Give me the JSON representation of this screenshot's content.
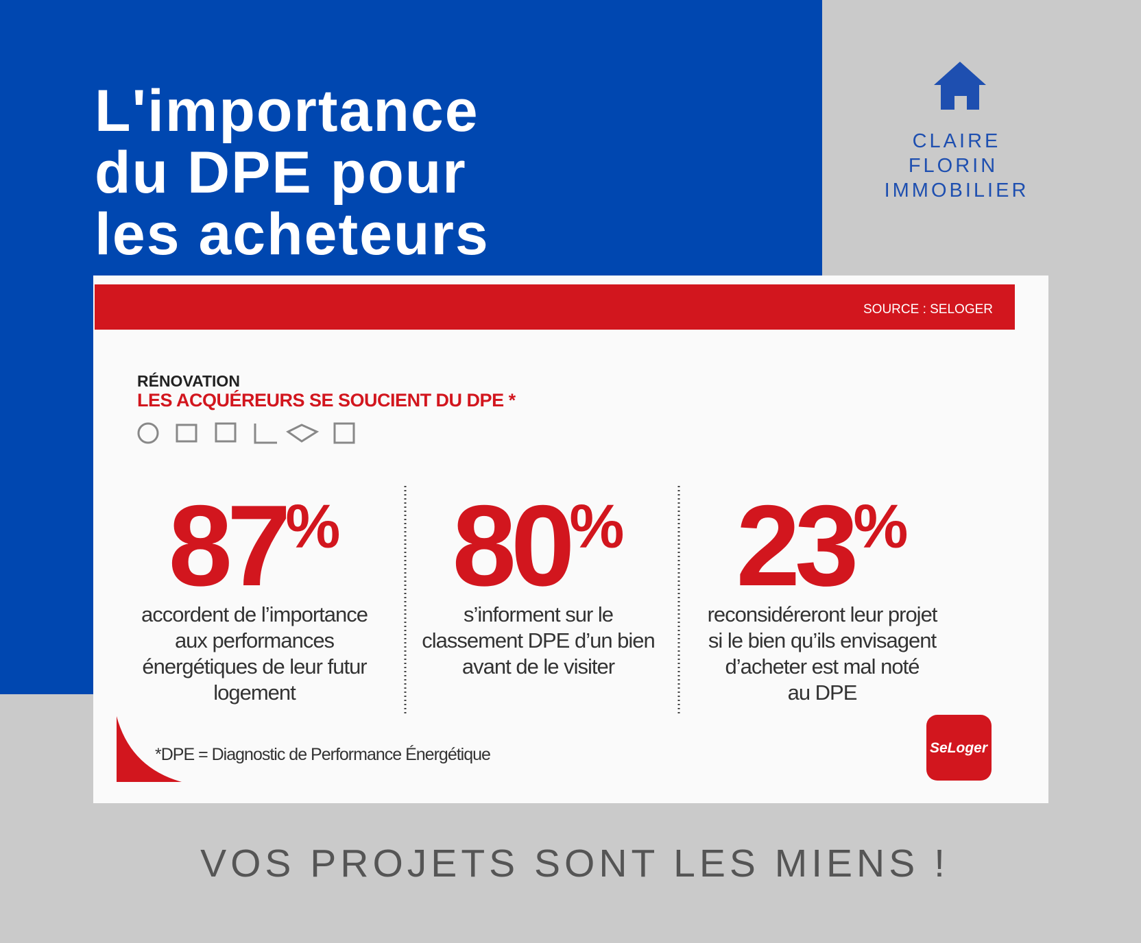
{
  "header": {
    "title_lines": [
      "L'importance",
      "du DPE pour",
      "les acheteurs"
    ],
    "brand_lines": [
      "CLAIRE",
      "FLORIN",
      "IMMOBILIER"
    ]
  },
  "card": {
    "source": "SOURCE : SELOGER",
    "kicker": "RÉNOVATION",
    "heading": "LES ACQUÉREURS SE SOUCIENT DU DPE *",
    "stats": [
      {
        "value": "87",
        "unit": "%",
        "lines": [
          "accordent de l’importance",
          "aux performances",
          "énergétiques de leur futur",
          "logement"
        ]
      },
      {
        "value": "80",
        "unit": "%",
        "lines": [
          "s’informent sur le",
          "classement DPE d’un bien",
          "avant de le visiter"
        ]
      },
      {
        "value": "23",
        "unit": "%",
        "lines": [
          "reconsidéreront leur projet",
          "si le bien qu’ils envisagent",
          "d’acheter est mal noté",
          "au DPE"
        ]
      }
    ],
    "footnote": "*DPE = Diagnostic de Performance Énergétique",
    "logo": "SeLoger"
  },
  "footer": {
    "tagline": "VOS PROJETS SONT LES MIENS !"
  }
}
